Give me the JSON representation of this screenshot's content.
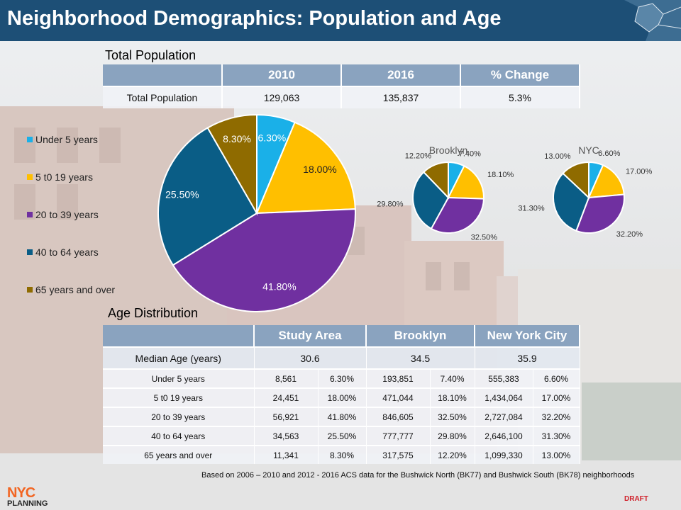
{
  "header": {
    "title": "Neighborhood Demographics: Population and Age"
  },
  "population_section": {
    "title": "Total Population"
  },
  "population_table": {
    "columns": [
      "",
      "2010",
      "2016",
      "% Change"
    ],
    "rows": [
      {
        "label": "Total Population",
        "v2010": "129,063",
        "v2016": "135,837",
        "change": "5.3%"
      }
    ]
  },
  "age_section": {
    "title": "Age Distribution"
  },
  "age_table": {
    "columns": [
      "",
      "Study Area",
      "Brooklyn",
      "New York City"
    ],
    "median": {
      "label": "Median Age (years)",
      "study": "30.6",
      "brooklyn": "34.5",
      "nyc": "35.9"
    },
    "rows": [
      {
        "label": "Under 5 years",
        "s_n": "8,561",
        "s_p": "6.30%",
        "b_n": "193,851",
        "b_p": "7.40%",
        "c_n": "555,383",
        "c_p": "6.60%"
      },
      {
        "label": "5 t0 19 years",
        "s_n": "24,451",
        "s_p": "18.00%",
        "b_n": "471,044",
        "b_p": "18.10%",
        "c_n": "1,434,064",
        "c_p": "17.00%"
      },
      {
        "label": "20 to 39 years",
        "s_n": "56,921",
        "s_p": "41.80%",
        "b_n": "846,605",
        "b_p": "32.50%",
        "c_n": "2,727,084",
        "c_p": "32.20%"
      },
      {
        "label": "40 to 64 years",
        "s_n": "34,563",
        "s_p": "25.50%",
        "b_n": "777,777",
        "b_p": "29.80%",
        "c_n": "2,646,100",
        "c_p": "31.30%"
      },
      {
        "label": "65 years and over",
        "s_n": "11,341",
        "s_p": "8.30%",
        "b_n": "317,575",
        "b_p": "12.20%",
        "c_n": "1,099,330",
        "c_p": "13.00%"
      }
    ]
  },
  "chart_data": [
    {
      "type": "pie",
      "title": "",
      "legend": "left",
      "categories": [
        "Under 5 years",
        "5 t0 19 years",
        "20 to 39 years",
        "40 to 64 years",
        "65 years and over"
      ],
      "values": [
        6.3,
        18.0,
        41.8,
        25.5,
        8.3
      ],
      "labels": [
        "6.30%",
        "18.00%",
        "41.80%",
        "25.50%",
        "8.30%"
      ],
      "colors": [
        "#1ab0e8",
        "#ffbf00",
        "#7030a0",
        "#0a5d86",
        "#8f6b00"
      ]
    },
    {
      "type": "pie",
      "title": "Brooklyn",
      "categories": [
        "Under 5 years",
        "5 t0 19 years",
        "20 to 39 years",
        "40 to 64 years",
        "65 years and over"
      ],
      "values": [
        7.4,
        18.1,
        32.5,
        29.8,
        12.2
      ],
      "labels": [
        "7.40%",
        "18.10%",
        "32.50%",
        "29.80%",
        "12.20%"
      ],
      "colors": [
        "#1ab0e8",
        "#ffbf00",
        "#7030a0",
        "#0a5d86",
        "#8f6b00"
      ]
    },
    {
      "type": "pie",
      "title": "NYC",
      "categories": [
        "Under 5 years",
        "5 t0 19 years",
        "20 to 39 years",
        "40 to 64 years",
        "65 years and over"
      ],
      "values": [
        6.6,
        17.0,
        32.2,
        31.3,
        13.0
      ],
      "labels": [
        "6.60%",
        "17.00%",
        "32.20%",
        "31.30%",
        "13.00%"
      ],
      "colors": [
        "#1ab0e8",
        "#ffbf00",
        "#7030a0",
        "#0a5d86",
        "#8f6b00"
      ]
    }
  ],
  "footnote": "Based on 2006 – 2010 and  2012 - 2016 ACS data for the Bushwick North (BK77) and  Bushwick South (BK78) neighborhoods",
  "logo": {
    "line1": "NYC",
    "line2": "PLANNING",
    "accent_color": "#f26522"
  },
  "draft_label": "DRAFT",
  "header_color": "#1d4f76"
}
